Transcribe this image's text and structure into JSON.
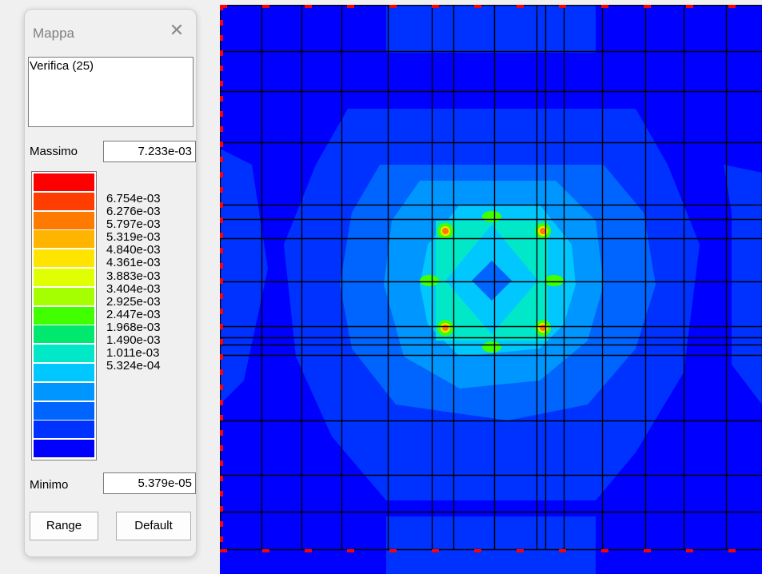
{
  "window": {
    "title": "Mappa",
    "close_glyph": "✕",
    "selection": "Verifica (25)"
  },
  "max": {
    "label": "Massimo",
    "value": "7.233e-03"
  },
  "min": {
    "label": "Minimo",
    "value": "5.379e-05"
  },
  "legend": {
    "levels": [
      "6.754e-03",
      "6.276e-03",
      "5.797e-03",
      "5.319e-03",
      "4.840e-03",
      "4.361e-03",
      "3.883e-03",
      "3.404e-03",
      "2.925e-03",
      "2.447e-03",
      "1.968e-03",
      "1.490e-03",
      "1.011e-03",
      "5.324e-04"
    ],
    "colors": [
      "#ff0000",
      "#ff3d00",
      "#ff7a00",
      "#ffb400",
      "#ffe400",
      "#e0ff00",
      "#a6ff00",
      "#42ff00",
      "#00e86e",
      "#00e8c8",
      "#00c8ff",
      "#0096ff",
      "#0064ff",
      "#0032ff",
      "#0000ff"
    ]
  },
  "buttons": {
    "range": "Range",
    "default": "Default"
  },
  "map": {
    "grid_color": "#000000",
    "support_color": "#ff0000",
    "colors": {
      "low": "#0000ff",
      "mid1": "#0032ff",
      "mid2": "#0064ff",
      "mid3": "#0096ff",
      "mid4": "#00c8ff",
      "cyan": "#00e8c8",
      "green": "#42ff00",
      "yellow": "#ffe400",
      "orange": "#ff7a00",
      "red": "#ff0000"
    }
  }
}
